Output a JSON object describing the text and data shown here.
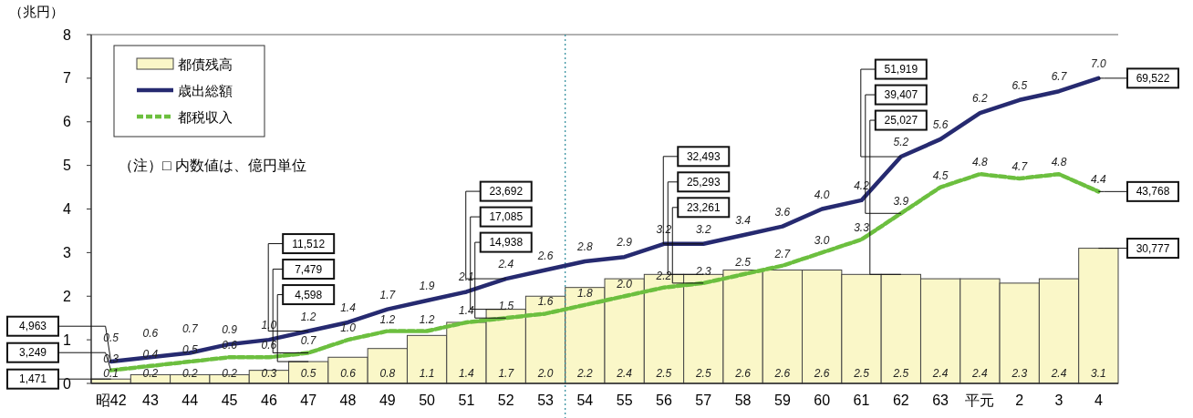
{
  "chart_data": {
    "type": "bar",
    "ylabel": "（兆円）",
    "categories": [
      "昭42",
      "43",
      "44",
      "45",
      "46",
      "47",
      "48",
      "49",
      "50",
      "51",
      "52",
      "53",
      "54",
      "55",
      "56",
      "57",
      "58",
      "59",
      "60",
      "61",
      "62",
      "63",
      "平元",
      "2",
      "3",
      "4"
    ],
    "series": [
      {
        "name": "都債残高",
        "color": "#faf7c8",
        "values": [
          0.1,
          0.2,
          0.2,
          0.2,
          0.3,
          0.5,
          0.6,
          0.8,
          1.1,
          1.4,
          1.7,
          2.0,
          2.2,
          2.4,
          2.5,
          2.5,
          2.6,
          2.6,
          2.6,
          2.5,
          2.5,
          2.4,
          2.4,
          2.3,
          2.4,
          3.1
        ],
        "value_labels": [
          "0.1",
          "0.2",
          "0.2",
          "0.2",
          "0.3",
          "0.5",
          "0.6",
          "0.8",
          "1.1",
          "1.4",
          "1.7",
          "2.0",
          "2.2",
          "2.4",
          "2.5",
          "2.5",
          "2.6",
          "2.6",
          "2.6",
          "2.5",
          "2.5",
          "2.4",
          "2.4",
          "2.3",
          "2.4",
          "3.1"
        ]
      },
      {
        "name": "歳出総額",
        "type": "line",
        "color": "#262a70",
        "values": [
          0.5,
          0.6,
          0.7,
          0.9,
          1.0,
          1.2,
          1.4,
          1.7,
          1.9,
          2.1,
          2.4,
          2.6,
          2.8,
          2.9,
          3.2,
          3.2,
          3.4,
          3.6,
          4.0,
          4.2,
          5.2,
          5.6,
          6.2,
          6.5,
          6.7,
          7.0
        ],
        "value_labels": [
          "0.5",
          "0.6",
          "0.7",
          "0.9",
          "1.0",
          "1.2",
          "1.4",
          "1.7",
          "1.9",
          "2.1",
          "2.4",
          "2.6",
          "2.8",
          "2.9",
          "3.2",
          "3.2",
          "3.4",
          "3.6",
          "4.0",
          "4.2",
          "5.2",
          "5.6",
          "6.2",
          "6.5",
          "6.7",
          "7.0"
        ]
      },
      {
        "name": "都税収入",
        "type": "line",
        "line_style": "dashed",
        "color": "#6cbf3f",
        "values": [
          0.3,
          0.4,
          0.5,
          0.6,
          0.6,
          0.7,
          1.0,
          1.2,
          1.2,
          1.4,
          1.5,
          1.6,
          1.8,
          2.0,
          2.2,
          2.3,
          2.5,
          2.7,
          3.0,
          3.3,
          3.9,
          4.5,
          4.8,
          4.7,
          4.8,
          4.4
        ],
        "value_labels": [
          "0.3",
          "0.4",
          "0.5",
          "0.6",
          "0.6",
          "0.7",
          "1.0",
          "1.2",
          "1.2",
          "1.4",
          "1.5",
          "1.6",
          "1.8",
          "2.0",
          "2.2",
          "2.3",
          "2.5",
          "2.7",
          "3.0",
          "3.3",
          "3.9",
          "4.5",
          "4.8",
          "4.7",
          "4.8",
          "4.4"
        ]
      }
    ],
    "ylim": [
      0,
      8
    ],
    "yticks": [
      0,
      1,
      2,
      3,
      4,
      5,
      6,
      7,
      8
    ],
    "legend": "top left",
    "ref_lines": [
      {
        "axis": "x",
        "value": "53",
        "color": "#2a8a9a",
        "line_style": "dotted"
      }
    ],
    "annotations": [
      "（注）□ 内数値は、億円単位",
      {
        "text": "4,963",
        "x": "昭42",
        "y": 0.5
      },
      {
        "text": "3,249",
        "x": "昭42",
        "y": 0.3
      },
      {
        "text": "1,471",
        "x": "昭42",
        "y": 0.1
      },
      {
        "text": "11,512",
        "x": "47",
        "y": 1.2
      },
      {
        "text": "7,479",
        "x": "47",
        "y": 0.7
      },
      {
        "text": "4,598",
        "x": "47",
        "y": 0.5
      },
      {
        "text": "23,692",
        "x": "52",
        "y": 2.4
      },
      {
        "text": "14,938",
        "x": "52",
        "y": 1.5
      },
      {
        "text": "17,085",
        "x": "52",
        "y": 1.7
      },
      {
        "text": "32,493",
        "x": "57",
        "y": 3.2
      },
      {
        "text": "23,261",
        "x": "57",
        "y": 2.3
      },
      {
        "text": "25,293",
        "x": "57",
        "y": 2.5
      },
      {
        "text": "51,919",
        "x": "62",
        "y": 5.2
      },
      {
        "text": "39,407",
        "x": "62",
        "y": 3.9
      },
      {
        "text": "25,027",
        "x": "62",
        "y": 2.5
      },
      {
        "text": "69,522",
        "x": "4",
        "y": 7.0
      },
      {
        "text": "43,768",
        "x": "4",
        "y": 4.4
      },
      {
        "text": "30,777",
        "x": "4",
        "y": 3.1
      }
    ]
  }
}
